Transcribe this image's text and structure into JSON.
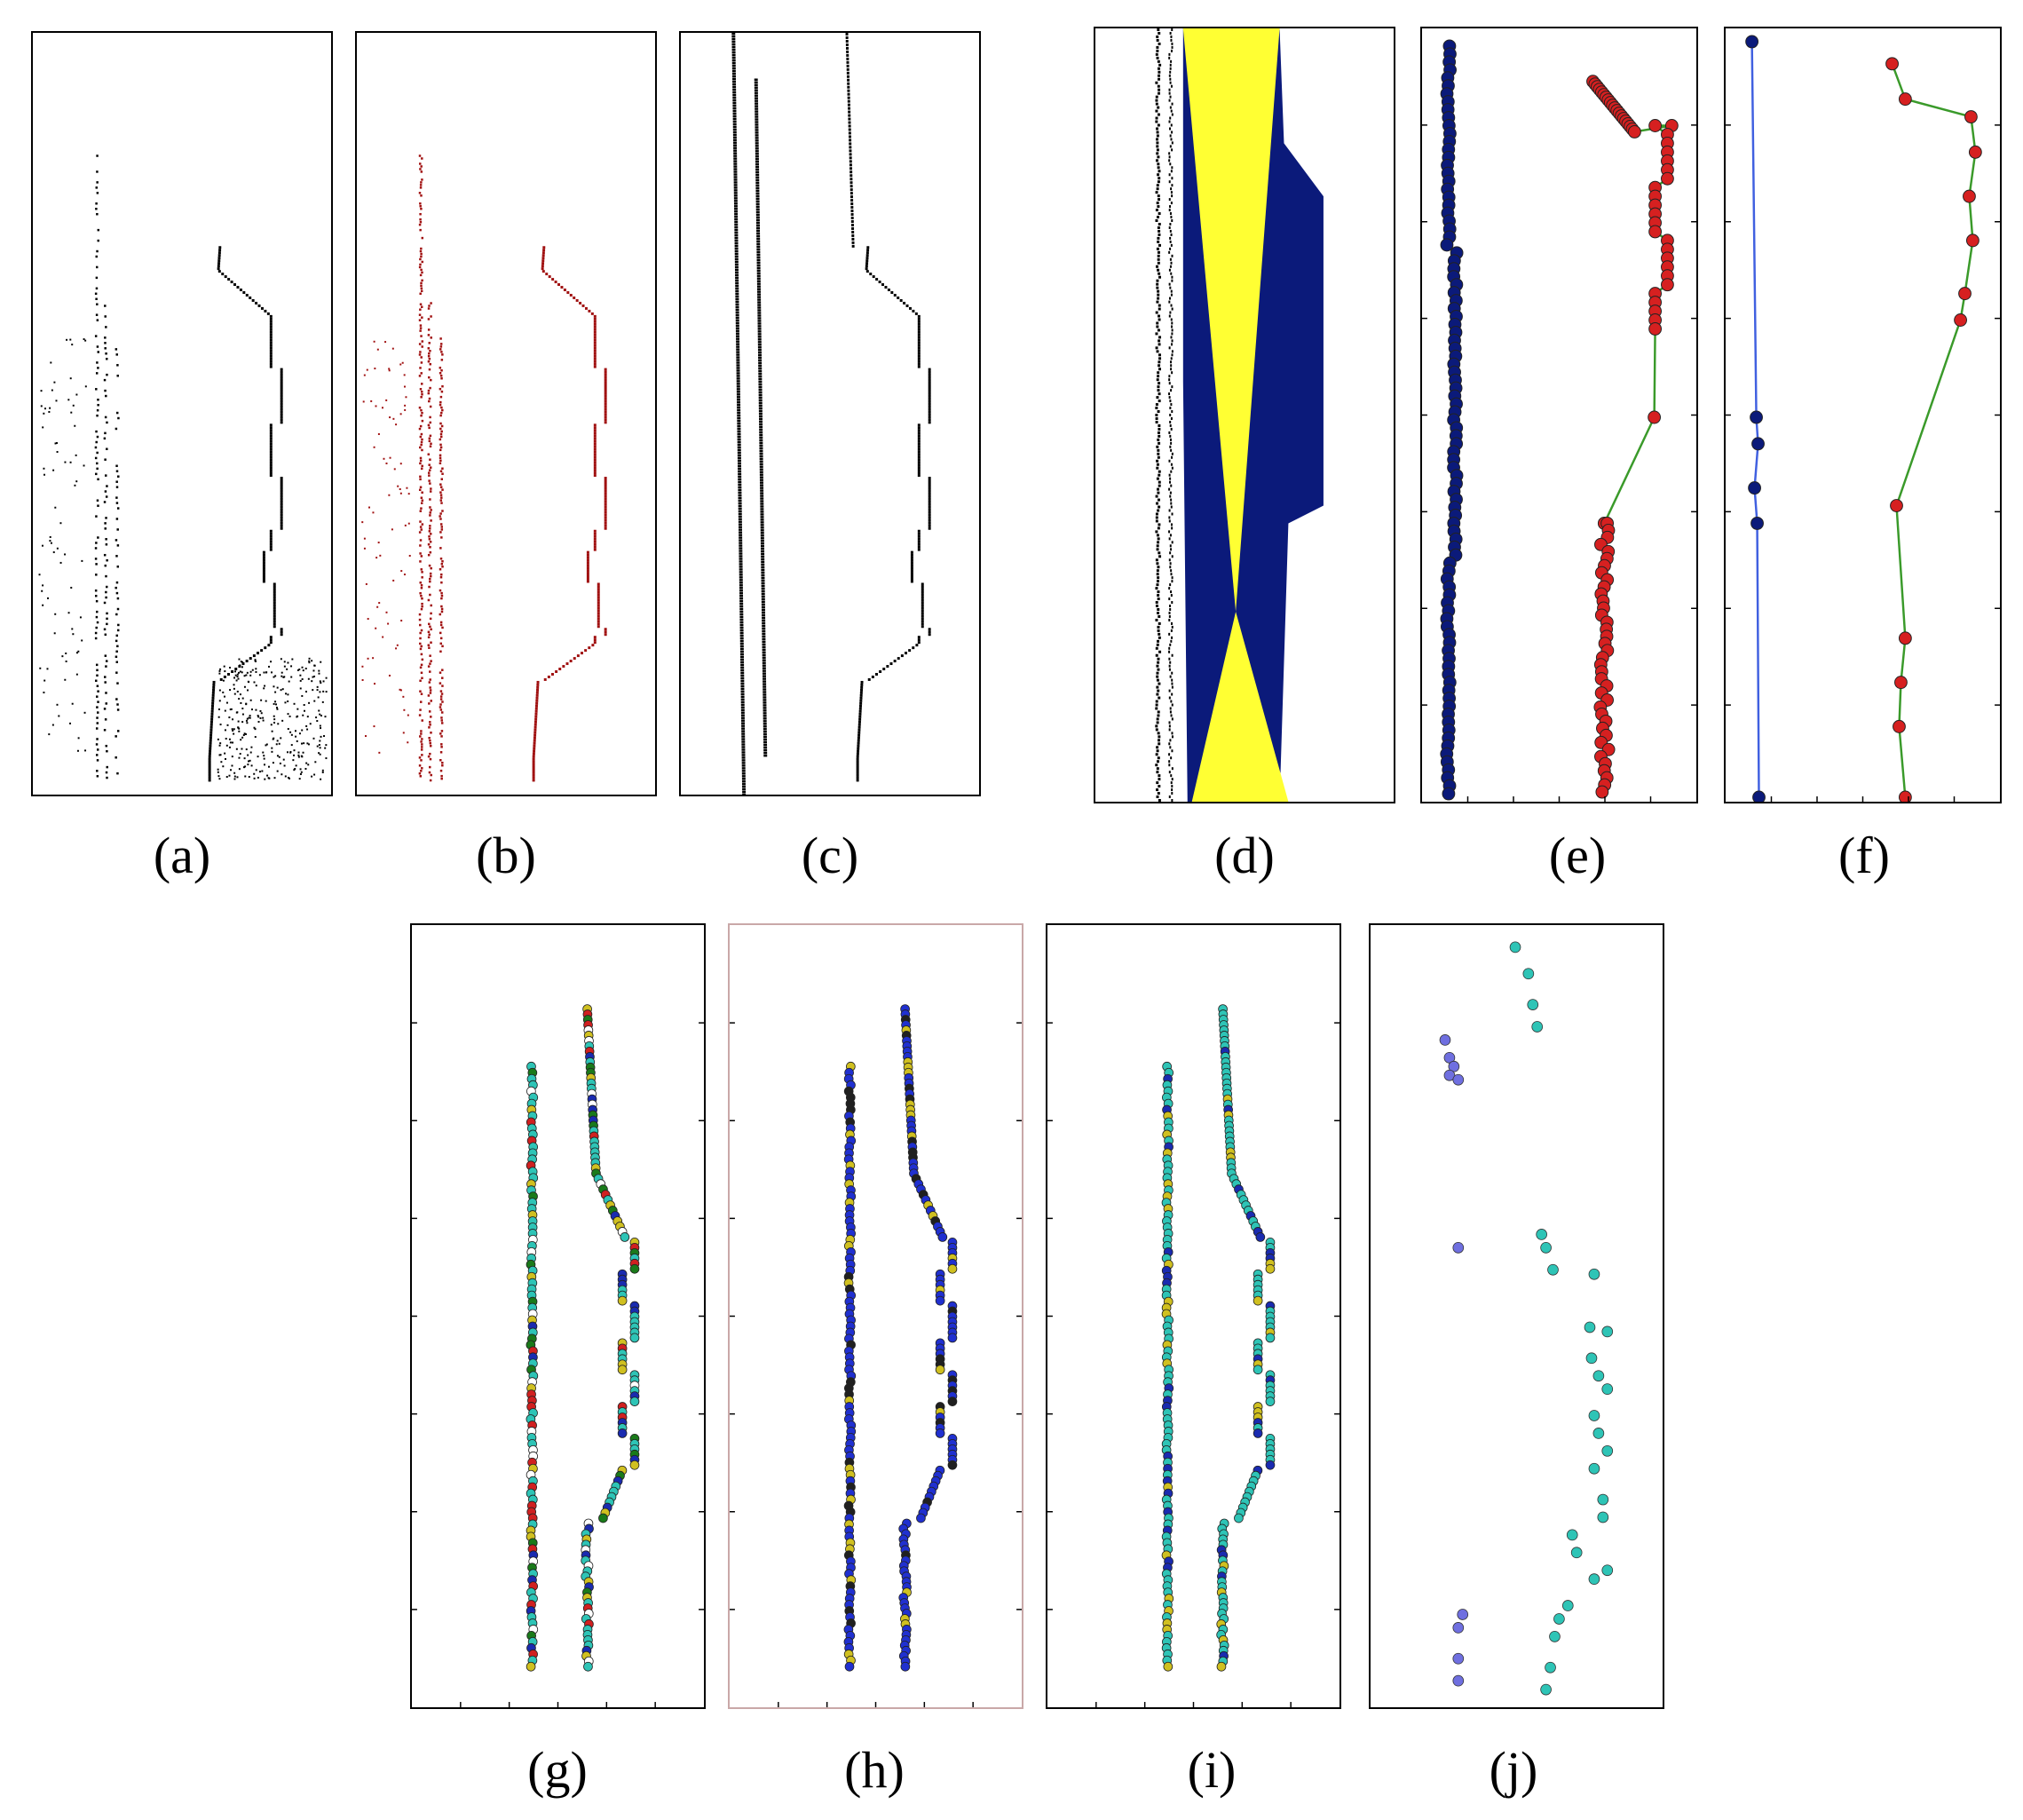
{
  "panels": [
    {
      "id": "a",
      "caption": "(a)",
      "style": "black-points"
    },
    {
      "id": "b",
      "caption": "(b)",
      "style": "red-points"
    },
    {
      "id": "c",
      "caption": "(c)",
      "style": "black-points-clean"
    },
    {
      "id": "d",
      "caption": "(d)",
      "style": "blue-fill-yellow-bowtie"
    },
    {
      "id": "e",
      "caption": "(e)",
      "style": "dense-markers-navy-red"
    },
    {
      "id": "f",
      "caption": "(f)",
      "style": "sparse-markers-navy-red"
    },
    {
      "id": "g",
      "caption": "(g)",
      "style": "multicolor-markers"
    },
    {
      "id": "h",
      "caption": "(h)",
      "style": "blue-markers"
    },
    {
      "id": "i",
      "caption": "(i)",
      "style": "cyan-markers"
    },
    {
      "id": "j",
      "caption": "(j)",
      "style": "scattered-markers"
    }
  ],
  "colors": {
    "black": "#000000",
    "red": "#a01010",
    "navy": "#0b1a7a",
    "yellow": "#ffff33",
    "marker_red": "#d62020",
    "line_green": "#3a9a2a",
    "line_blue": "#4060e0",
    "cyan": "#2ec4b6",
    "blue_marker": "#2030d0",
    "lavender": "#6f6fe0"
  }
}
